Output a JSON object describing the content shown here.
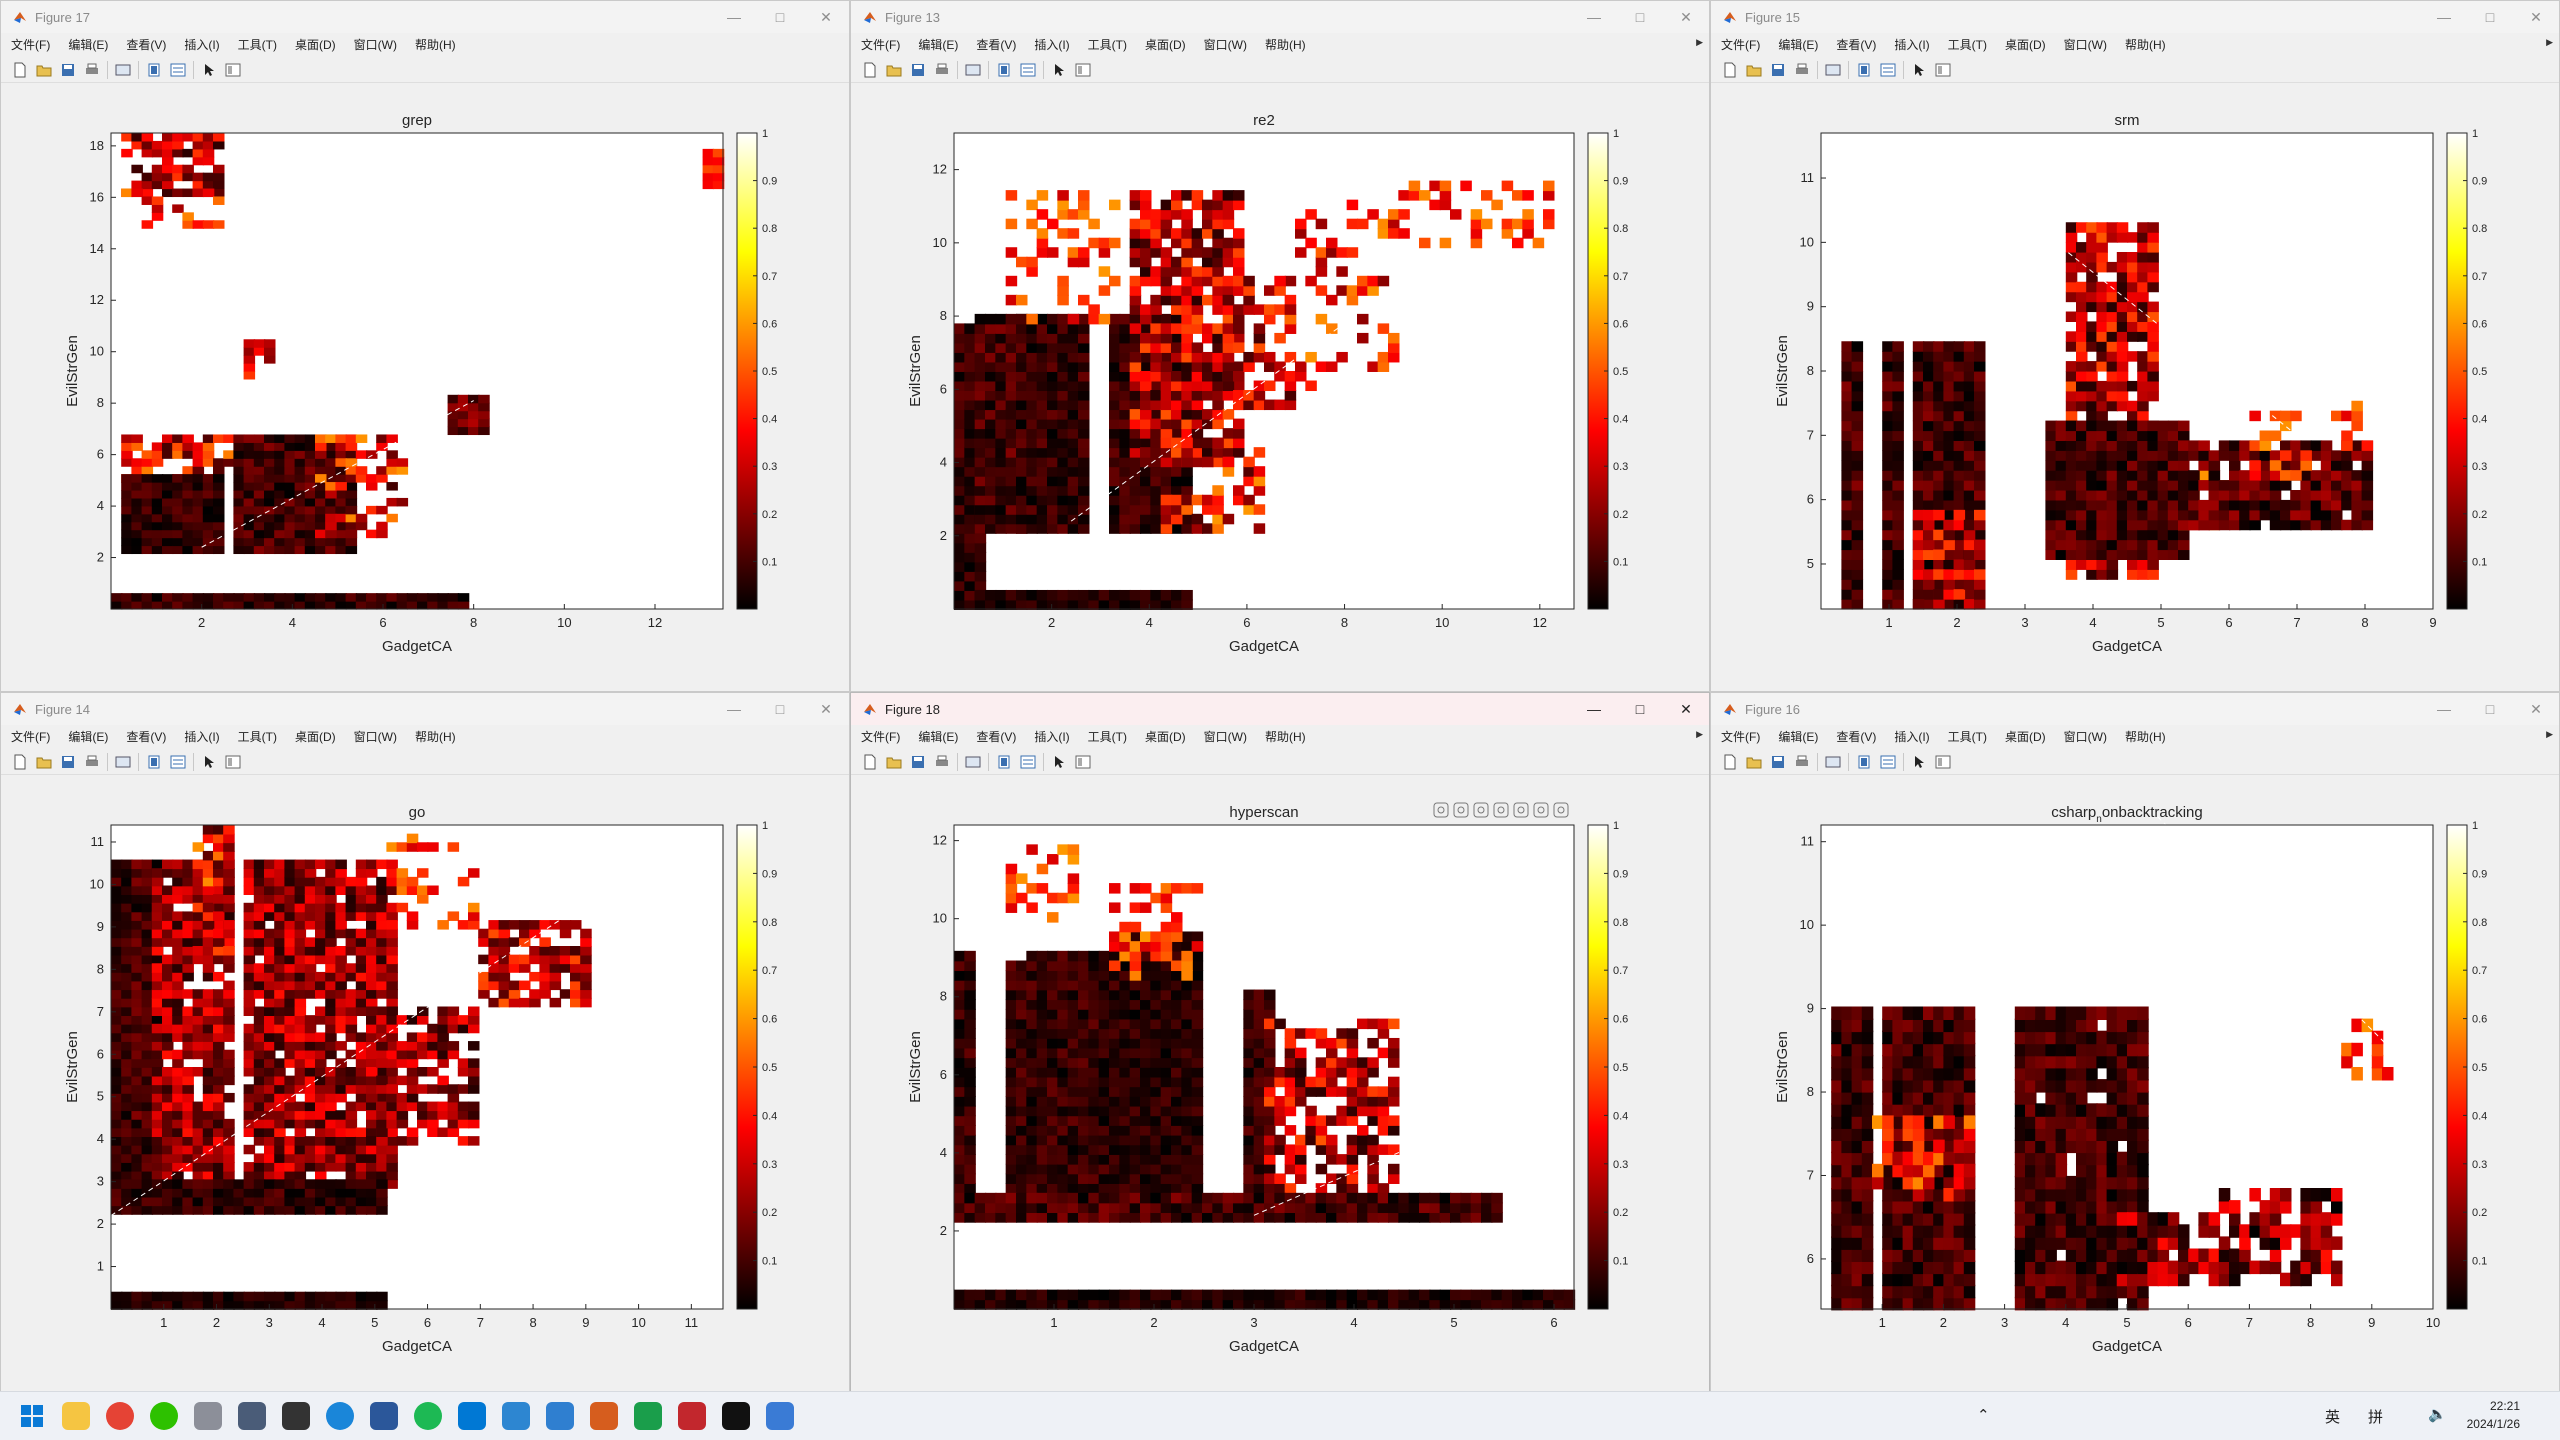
{
  "menus": [
    "文件(F)",
    "编辑(E)",
    "查看(V)",
    "插入(I)",
    "工具(T)",
    "桌面(D)",
    "窗口(W)",
    "帮助(H)"
  ],
  "colorbar_ticks": [
    "1",
    "0.9",
    "0.8",
    "0.7",
    "0.6",
    "0.5",
    "0.4",
    "0.3",
    "0.2",
    "0.1"
  ],
  "windows": [
    {
      "title": "Figure 17",
      "chart_data": {
        "type": "heatmap",
        "title": "grep",
        "xlabel": "GadgetCA",
        "ylabel": "EvilStrGen",
        "xlim": [
          0,
          13.5
        ],
        "ylim": [
          0,
          18.5
        ],
        "x_ticks": [
          "2",
          "4",
          "6",
          "8",
          "10",
          "12"
        ],
        "y_ticks": [
          "2",
          "4",
          "6",
          "8",
          "10",
          "12",
          "14",
          "16",
          "18"
        ],
        "colorbar": [
          0,
          1
        ],
        "colormap": "hot"
      }
    },
    {
      "title": "Figure 13",
      "chart_data": {
        "type": "heatmap",
        "title": "re2",
        "xlabel": "GadgetCA",
        "ylabel": "EvilStrGen",
        "xlim": [
          0,
          12.7
        ],
        "ylim": [
          0,
          13
        ],
        "x_ticks": [
          "2",
          "4",
          "6",
          "8",
          "10",
          "12"
        ],
        "y_ticks": [
          "2",
          "4",
          "6",
          "8",
          "10",
          "12"
        ],
        "colorbar": [
          0,
          1
        ],
        "colormap": "hot"
      }
    },
    {
      "title": "Figure 15",
      "chart_data": {
        "type": "heatmap",
        "title": "srm",
        "xlabel": "GadgetCA",
        "ylabel": "EvilStrGen",
        "xlim": [
          0,
          9
        ],
        "ylim": [
          4.3,
          11.7
        ],
        "x_ticks": [
          "1",
          "2",
          "3",
          "4",
          "5",
          "6",
          "7",
          "8",
          "9"
        ],
        "y_ticks": [
          "5",
          "6",
          "7",
          "8",
          "9",
          "10",
          "11"
        ],
        "colorbar": [
          0,
          1
        ],
        "colormap": "hot"
      }
    },
    {
      "title": "Figure 14",
      "chart_data": {
        "type": "heatmap",
        "title": "go",
        "xlabel": "GadgetCA",
        "ylabel": "EvilStrGen",
        "xlim": [
          0,
          11.6
        ],
        "ylim": [
          0,
          11.4
        ],
        "x_ticks": [
          "1",
          "2",
          "3",
          "4",
          "5",
          "6",
          "7",
          "8",
          "9",
          "10",
          "11"
        ],
        "y_ticks": [
          "1",
          "2",
          "3",
          "4",
          "5",
          "6",
          "7",
          "8",
          "9",
          "10",
          "11"
        ],
        "colorbar": [
          0,
          1
        ],
        "colormap": "hot"
      }
    },
    {
      "title": "Figure 18",
      "chart_data": {
        "type": "heatmap",
        "title": "hyperscan",
        "xlabel": "GadgetCA",
        "ylabel": "EvilStrGen",
        "xlim": [
          0,
          6.2
        ],
        "ylim": [
          0,
          12.4
        ],
        "x_ticks": [
          "1",
          "2",
          "3",
          "4",
          "5",
          "6"
        ],
        "y_ticks": [
          "2",
          "4",
          "6",
          "8",
          "10",
          "12"
        ],
        "colorbar": [
          0,
          1
        ],
        "colormap": "hot"
      }
    },
    {
      "title": "Figure 16",
      "chart_data": {
        "type": "heatmap",
        "title": "csharp",
        "title_sub": "n",
        "title_rest": "onbacktracking",
        "xlabel": "GadgetCA",
        "ylabel": "EvilStrGen",
        "xlim": [
          0,
          10
        ],
        "ylim": [
          5.4,
          11.2
        ],
        "x_ticks": [
          "1",
          "2",
          "3",
          "4",
          "5",
          "6",
          "7",
          "8",
          "9",
          "10"
        ],
        "y_ticks": [
          "6",
          "7",
          "8",
          "9",
          "10",
          "11"
        ],
        "colorbar": [
          0,
          1
        ],
        "colormap": "hot"
      }
    }
  ],
  "tray": {
    "lang": "英",
    "ime": "拼",
    "time": "22:21",
    "date": "2024/1/26"
  },
  "colors": {
    "accent": "#0078d4",
    "heat_dark": "#000000",
    "heat_red": "#cc0000",
    "heat_orange": "#ff6600",
    "heat_yellow": "#ffdd00"
  }
}
